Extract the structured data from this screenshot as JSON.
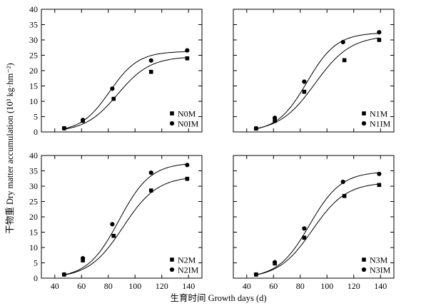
{
  "figure": {
    "ylabel": "干物重 Dry matter accumulation (10³ kg·hm⁻²)",
    "xlabel": "生育时间 Growth days (d)"
  },
  "chart_data": [
    {
      "type": "scatter",
      "panel": "top-left",
      "xlim": [
        30,
        150
      ],
      "ylim": [
        0,
        40
      ],
      "xticks": [
        40,
        60,
        80,
        100,
        120,
        140
      ],
      "yticks": [
        0,
        5,
        10,
        15,
        20,
        25,
        30,
        35,
        40
      ],
      "show_xtick_labels": false,
      "show_ytick_labels": true,
      "legend_position": "bottom-right",
      "series": [
        {
          "name": "N0M",
          "marker": "square",
          "x": [
            47,
            61,
            84,
            112,
            139
          ],
          "y": [
            1.2,
            3.6,
            10.8,
            19.6,
            24.0
          ],
          "fit": {
            "K": 24.6,
            "r": 0.082,
            "x0": 87
          }
        },
        {
          "name": "N0IM",
          "marker": "circle",
          "x": [
            47,
            61,
            83,
            112,
            139
          ],
          "y": [
            1.2,
            3.9,
            14.1,
            23.3,
            26.6
          ],
          "fit": {
            "K": 26.3,
            "r": 0.093,
            "x0": 81
          }
        }
      ]
    },
    {
      "type": "scatter",
      "panel": "top-right",
      "xlim": [
        30,
        150
      ],
      "ylim": [
        0,
        40
      ],
      "xticks": [
        40,
        60,
        80,
        100,
        120,
        140
      ],
      "yticks": [
        0,
        5,
        10,
        15,
        20,
        25,
        30,
        35,
        40
      ],
      "show_xtick_labels": false,
      "show_ytick_labels": false,
      "legend_position": "bottom-right",
      "series": [
        {
          "name": "N1M",
          "marker": "square",
          "x": [
            47,
            61,
            83,
            113,
            139
          ],
          "y": [
            1.1,
            3.6,
            13.1,
            23.4,
            30.0
          ],
          "fit": {
            "K": 31.5,
            "r": 0.075,
            "x0": 91
          }
        },
        {
          "name": "N1IM",
          "marker": "circle",
          "x": [
            47,
            61,
            83,
            112,
            139
          ],
          "y": [
            1.2,
            4.6,
            16.4,
            29.3,
            32.5
          ],
          "fit": {
            "K": 32.4,
            "r": 0.09,
            "x0": 85
          }
        }
      ]
    },
    {
      "type": "scatter",
      "panel": "bottom-left",
      "xlim": [
        30,
        150
      ],
      "ylim": [
        0,
        40
      ],
      "xticks": [
        40,
        60,
        80,
        100,
        120,
        140
      ],
      "yticks": [
        0,
        5,
        10,
        15,
        20,
        25,
        30,
        35,
        40
      ],
      "show_xtick_labels": true,
      "show_ytick_labels": true,
      "legend_position": "bottom-right",
      "series": [
        {
          "name": "N2M",
          "marker": "square",
          "x": [
            47,
            61,
            84,
            112,
            139
          ],
          "y": [
            1.2,
            5.8,
            13.8,
            28.6,
            32.4
          ],
          "fit": {
            "K": 33.3,
            "r": 0.078,
            "x0": 91
          }
        },
        {
          "name": "N2IM",
          "marker": "circle",
          "x": [
            47,
            61,
            83,
            112,
            139
          ],
          "y": [
            1.2,
            6.5,
            17.6,
            34.4,
            36.9
          ],
          "fit": {
            "K": 37.7,
            "r": 0.085,
            "x0": 88
          }
        }
      ]
    },
    {
      "type": "scatter",
      "panel": "bottom-right",
      "xlim": [
        30,
        150
      ],
      "ylim": [
        0,
        40
      ],
      "xticks": [
        40,
        60,
        80,
        100,
        120,
        140
      ],
      "yticks": [
        0,
        5,
        10,
        15,
        20,
        25,
        30,
        35,
        40
      ],
      "show_xtick_labels": true,
      "show_ytick_labels": false,
      "legend_position": "bottom-right",
      "series": [
        {
          "name": "N3M",
          "marker": "square",
          "x": [
            47,
            61,
            83,
            113,
            139
          ],
          "y": [
            1.2,
            4.8,
            13.2,
            26.8,
            30.4
          ],
          "fit": {
            "K": 31.3,
            "r": 0.079,
            "x0": 89
          }
        },
        {
          "name": "N3IM",
          "marker": "circle",
          "x": [
            47,
            61,
            83,
            112,
            139
          ],
          "y": [
            1.2,
            5.2,
            16.2,
            31.4,
            34.0
          ],
          "fit": {
            "K": 34.8,
            "r": 0.085,
            "x0": 87
          }
        }
      ]
    }
  ]
}
